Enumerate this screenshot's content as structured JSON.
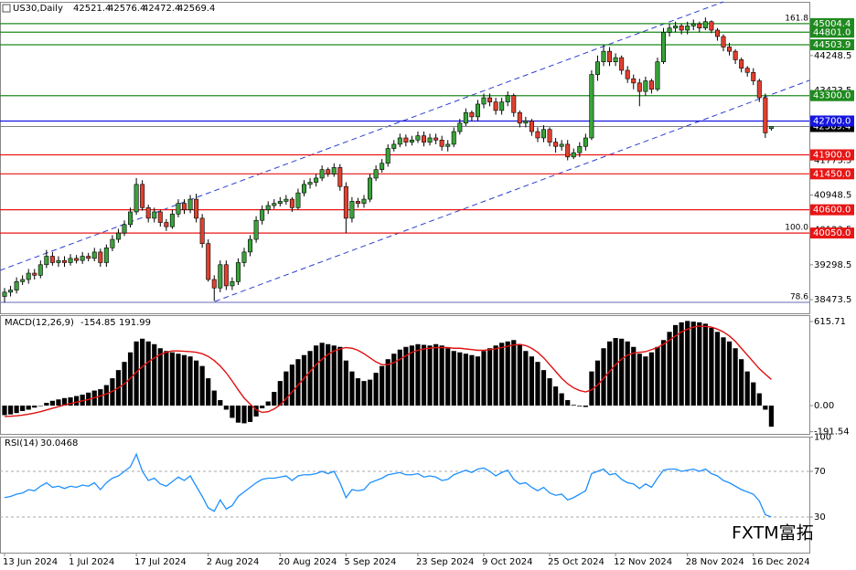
{
  "chart_data": [
    {
      "type": "candlestick",
      "title": "US30,Daily",
      "categories": [
        "13 Jun 2024",
        null,
        null,
        null,
        null,
        null,
        null,
        null,
        null,
        null,
        null,
        "1 Jul 2024",
        null,
        null,
        null,
        null,
        null,
        null,
        null,
        null,
        null,
        null,
        "17 Jul 2024",
        null,
        null,
        null,
        null,
        null,
        null,
        null,
        null,
        null,
        null,
        null,
        "2 Aug 2024",
        null,
        null,
        null,
        null,
        null,
        null,
        null,
        null,
        null,
        null,
        null,
        "20 Aug 2024",
        null,
        null,
        null,
        null,
        null,
        null,
        null,
        null,
        null,
        null,
        "5 Sep 2024",
        null,
        null,
        null,
        null,
        null,
        null,
        null,
        null,
        null,
        null,
        null,
        "23 Sep 2024",
        null,
        null,
        null,
        null,
        null,
        null,
        null,
        null,
        null,
        null,
        "9 Oct 2024",
        null,
        null,
        null,
        null,
        null,
        null,
        null,
        null,
        null,
        null,
        "25 Oct 2024",
        null,
        null,
        null,
        null,
        null,
        null,
        null,
        null,
        null,
        null,
        "12 Nov 2024",
        null,
        null,
        null,
        null,
        null,
        null,
        null,
        null,
        null,
        null,
        null,
        "28 Nov 2024",
        null,
        null,
        null,
        null,
        null,
        null,
        null,
        null,
        null,
        null,
        "16 Dec 2024",
        null,
        null,
        null
      ],
      "open": [
        38550,
        38650,
        38700,
        38900,
        38950,
        39100,
        39050,
        39300,
        39500,
        39350,
        39400,
        39350,
        39450,
        39400,
        39500,
        39450,
        39600,
        39350,
        39700,
        39900,
        40050,
        40250,
        40550,
        41200,
        40650,
        40400,
        40550,
        40300,
        40200,
        40500,
        40750,
        40600,
        40850,
        40400,
        39800,
        38950,
        38750,
        39300,
        38800,
        38900,
        39350,
        39600,
        39900,
        40350,
        40600,
        40700,
        40750,
        40800,
        40850,
        40650,
        41000,
        41200,
        41250,
        41350,
        41550,
        41450,
        41600,
        41150,
        40400,
        40800,
        40750,
        40850,
        41350,
        41550,
        41700,
        42050,
        42150,
        42300,
        42200,
        42250,
        42350,
        42200,
        42300,
        42250,
        42100,
        42150,
        42450,
        42650,
        42900,
        42800,
        43100,
        43250,
        43150,
        42950,
        43150,
        43300,
        42900,
        42650,
        42700,
        42450,
        42300,
        42500,
        42200,
        42100,
        42150,
        41850,
        41950,
        42100,
        42300,
        43800,
        44100,
        44350,
        44100,
        44200,
        43900,
        43700,
        43600,
        43400,
        43650,
        43450,
        44100,
        44800,
        44900,
        44950,
        44850,
        44950,
        45000,
        44900,
        45050,
        44850,
        44700,
        44450,
        44350,
        44150,
        43950,
        43850,
        43650,
        43250,
        42521.4
      ],
      "high": [
        38750,
        38800,
        39000,
        39050,
        39200,
        39200,
        39400,
        39650,
        39600,
        39500,
        39500,
        39550,
        39530,
        39600,
        39580,
        39700,
        39680,
        39780,
        40000,
        40150,
        40350,
        40650,
        41350,
        41300,
        40720,
        40650,
        40600,
        40380,
        40600,
        40850,
        40850,
        40950,
        40980,
        40500,
        39900,
        39050,
        39400,
        39400,
        39000,
        39450,
        39700,
        40000,
        40450,
        40700,
        40800,
        40850,
        40900,
        40950,
        40900,
        41100,
        41300,
        41350,
        41450,
        41650,
        41600,
        41700,
        41680,
        41250,
        40900,
        40880,
        40950,
        41450,
        41650,
        41800,
        42150,
        42250,
        42400,
        42380,
        42350,
        42450,
        42450,
        42400,
        42400,
        42350,
        42250,
        42550,
        42750,
        43000,
        42950,
        43200,
        43350,
        43350,
        43250,
        43250,
        43400,
        43350,
        42950,
        42800,
        42750,
        42550,
        42600,
        42550,
        42300,
        42250,
        42250,
        42050,
        42200,
        42400,
        43900,
        44250,
        44500,
        44450,
        44300,
        44250,
        44000,
        43800,
        43700,
        43750,
        43700,
        44200,
        44900,
        45000,
        45050,
        45000,
        45050,
        45100,
        45050,
        45150,
        45080,
        44900,
        44750,
        44550,
        44400,
        44200,
        44000,
        43950,
        43700,
        43350,
        42576.4
      ],
      "low": [
        38400,
        38550,
        38620,
        38820,
        38850,
        38950,
        38980,
        39220,
        39280,
        39250,
        39250,
        39280,
        39330,
        39320,
        39380,
        39380,
        39250,
        39250,
        39620,
        39820,
        39980,
        40180,
        40480,
        40580,
        40300,
        40300,
        40200,
        40100,
        40150,
        40420,
        40500,
        40520,
        40300,
        39700,
        38900,
        38440,
        38650,
        38700,
        38700,
        38820,
        39250,
        39500,
        39820,
        40250,
        40500,
        40620,
        40680,
        40720,
        40550,
        40600,
        40920,
        41100,
        41150,
        41280,
        41380,
        41380,
        41050,
        40050,
        40300,
        40650,
        40650,
        40780,
        41280,
        41480,
        41620,
        41980,
        42080,
        42100,
        42120,
        42180,
        42100,
        42120,
        42150,
        42000,
        41980,
        42080,
        42380,
        42580,
        42700,
        42700,
        43000,
        43050,
        42850,
        42850,
        43050,
        42800,
        42550,
        42550,
        42350,
        42200,
        42200,
        42100,
        41950,
        42000,
        41770,
        41800,
        41850,
        42000,
        42250,
        43650,
        44000,
        44000,
        44000,
        43800,
        43600,
        43450,
        43050,
        43300,
        43350,
        43400,
        44050,
        44700,
        44800,
        44750,
        44750,
        44850,
        44800,
        44850,
        44780,
        44600,
        44350,
        44250,
        44050,
        43850,
        43750,
        43550,
        43150,
        42300,
        42472.4
      ],
      "close": [
        38650,
        38700,
        38900,
        38950,
        39100,
        39050,
        39300,
        39500,
        39350,
        39400,
        39350,
        39450,
        39400,
        39500,
        39450,
        39600,
        39350,
        39700,
        39900,
        40050,
        40250,
        40550,
        41200,
        40650,
        40400,
        40550,
        40300,
        40200,
        40500,
        40750,
        40600,
        40850,
        40400,
        39800,
        38950,
        38750,
        39300,
        38800,
        38900,
        39350,
        39600,
        39900,
        40350,
        40600,
        40700,
        40750,
        40800,
        40850,
        40650,
        41000,
        41200,
        41250,
        41350,
        41550,
        41450,
        41600,
        41150,
        40400,
        40800,
        40750,
        40850,
        41350,
        41550,
        41700,
        42050,
        42150,
        42300,
        42200,
        42250,
        42350,
        42200,
        42300,
        42250,
        42100,
        42150,
        42450,
        42650,
        42900,
        42800,
        43100,
        43250,
        43150,
        42950,
        43150,
        43300,
        42900,
        42650,
        42700,
        42450,
        42300,
        42500,
        42200,
        42100,
        42150,
        41850,
        41950,
        42100,
        42300,
        43800,
        44100,
        44350,
        44100,
        44200,
        43900,
        43700,
        43600,
        43400,
        43650,
        43450,
        44100,
        44800,
        44900,
        44950,
        44850,
        44950,
        45000,
        44900,
        45050,
        44850,
        44700,
        44450,
        44350,
        44150,
        43950,
        43850,
        43650,
        43250,
        42420,
        42569.4
      ],
      "up_color": "#3aa23a",
      "down_color": "#e0402f",
      "ylim": [
        38150,
        45520
      ],
      "yticks": [
        38473.5,
        39298.5,
        40123.5,
        40948.5,
        41773.5,
        42598.5,
        43423.5,
        44248.5
      ],
      "levels": [
        {
          "value": 45004.4,
          "color": "#1f8a1f"
        },
        {
          "value": 44801,
          "label": "44801.0",
          "color": "#1f8a1f"
        },
        {
          "value": 44503.9,
          "color": "#1f8a1f"
        },
        {
          "value": 43300,
          "label": "43300.0",
          "color": "#1f8a1f"
        },
        {
          "value": 42700,
          "label": "42700.0",
          "color": "#1515e0"
        },
        {
          "value": 41900,
          "label": "41900.0",
          "color": "#e81515"
        },
        {
          "value": 41450,
          "label": "41450.0",
          "color": "#e81515"
        },
        {
          "value": 40600,
          "label": "40600.0",
          "color": "#e81515"
        },
        {
          "value": 40050,
          "label": "40050.0",
          "color": "#e81515"
        }
      ],
      "fib_levels": [
        {
          "label": "161.8",
          "value": 45004.4
        },
        {
          "label": "100.0",
          "value": 40050
        },
        {
          "label": "78.6",
          "value": 38410
        }
      ],
      "watermark": "FXTM富拓"
    },
    {
      "type": "macd",
      "title": "MACD(12,26,9)",
      "histogram": [
        -70,
        -65,
        -55,
        -40,
        -30,
        -15,
        0,
        20,
        35,
        45,
        55,
        60,
        70,
        80,
        95,
        110,
        120,
        150,
        200,
        260,
        320,
        390,
        470,
        490,
        470,
        450,
        420,
        400,
        390,
        380,
        370,
        360,
        330,
        290,
        200,
        110,
        40,
        -30,
        -90,
        -125,
        -130,
        -120,
        -80,
        -20,
        30,
        100,
        180,
        250,
        300,
        340,
        370,
        400,
        440,
        460,
        450,
        440,
        430,
        330,
        250,
        200,
        180,
        190,
        240,
        290,
        340,
        380,
        410,
        430,
        440,
        450,
        445,
        440,
        450,
        440,
        420,
        400,
        390,
        380,
        370,
        360,
        400,
        420,
        440,
        460,
        470,
        480,
        450,
        400,
        360,
        320,
        260,
        200,
        140,
        90,
        40,
        5,
        -5,
        -10,
        250,
        330,
        420,
        470,
        495,
        490,
        470,
        430,
        380,
        360,
        390,
        430,
        480,
        540,
        590,
        610,
        620,
        615,
        610,
        600,
        570,
        540,
        500,
        470,
        420,
        340,
        250,
        170,
        90,
        -30,
        -154.85
      ],
      "signal": [
        -80,
        -78,
        -75,
        -70,
        -63,
        -55,
        -45,
        -32,
        -20,
        -8,
        5,
        15,
        25,
        35,
        45,
        58,
        70,
        85,
        105,
        130,
        160,
        200,
        245,
        285,
        320,
        350,
        375,
        390,
        400,
        400,
        398,
        395,
        390,
        380,
        360,
        330,
        290,
        240,
        180,
        115,
        55,
        10,
        -30,
        -50,
        -45,
        -25,
        5,
        50,
        100,
        150,
        200,
        250,
        300,
        340,
        375,
        400,
        415,
        425,
        420,
        405,
        380,
        350,
        320,
        300,
        300,
        315,
        340,
        365,
        390,
        405,
        415,
        420,
        425,
        425,
        425,
        420,
        420,
        415,
        410,
        405,
        405,
        410,
        415,
        425,
        435,
        445,
        448,
        440,
        420,
        390,
        350,
        300,
        250,
        200,
        160,
        130,
        110,
        100,
        115,
        150,
        200,
        250,
        300,
        340,
        370,
        385,
        390,
        395,
        410,
        425,
        450,
        480,
        510,
        540,
        560,
        575,
        582,
        580,
        575,
        560,
        540,
        510,
        470,
        420,
        370,
        320,
        270,
        230,
        191.99
      ],
      "histogram_color": "#000000",
      "signal_color": "#e01010",
      "ylim": [
        -207.5,
        662.6
      ],
      "yticks": [
        -191.54,
        {
          "value": 0,
          "label": "0.00"
        },
        615.71
      ]
    },
    {
      "type": "line",
      "title": "RSI(14)",
      "values": [
        47,
        48,
        50,
        51,
        54,
        53,
        57,
        60,
        56,
        57,
        55,
        57,
        56,
        58,
        57,
        60,
        54,
        60,
        64,
        66,
        70,
        74,
        85,
        70,
        62,
        64,
        59,
        57,
        61,
        65,
        62,
        66,
        57,
        48,
        38,
        35,
        45,
        37,
        40,
        48,
        52,
        56,
        60,
        63,
        64,
        64,
        65,
        66,
        62,
        66,
        67,
        67,
        68,
        70,
        68,
        70,
        60,
        47,
        54,
        53,
        54,
        60,
        62,
        64,
        67,
        68,
        69,
        67,
        67,
        68,
        65,
        66,
        65,
        62,
        63,
        67,
        69,
        71,
        69,
        72,
        73,
        70,
        66,
        69,
        71,
        63,
        59,
        60,
        56,
        53,
        56,
        51,
        49,
        50,
        45,
        47,
        50,
        53,
        68,
        70,
        72,
        67,
        68,
        63,
        60,
        59,
        55,
        59,
        56,
        64,
        71,
        72,
        72,
        70,
        71,
        72,
        70,
        72,
        68,
        66,
        62,
        60,
        57,
        54,
        52,
        50,
        44,
        32,
        30.0468
      ],
      "color": "#1e90ff",
      "ylim": [
        -1.2,
        100.4
      ],
      "yticks": [
        30,
        70,
        100
      ],
      "dashed_levels": [
        30,
        70
      ]
    }
  ]
}
